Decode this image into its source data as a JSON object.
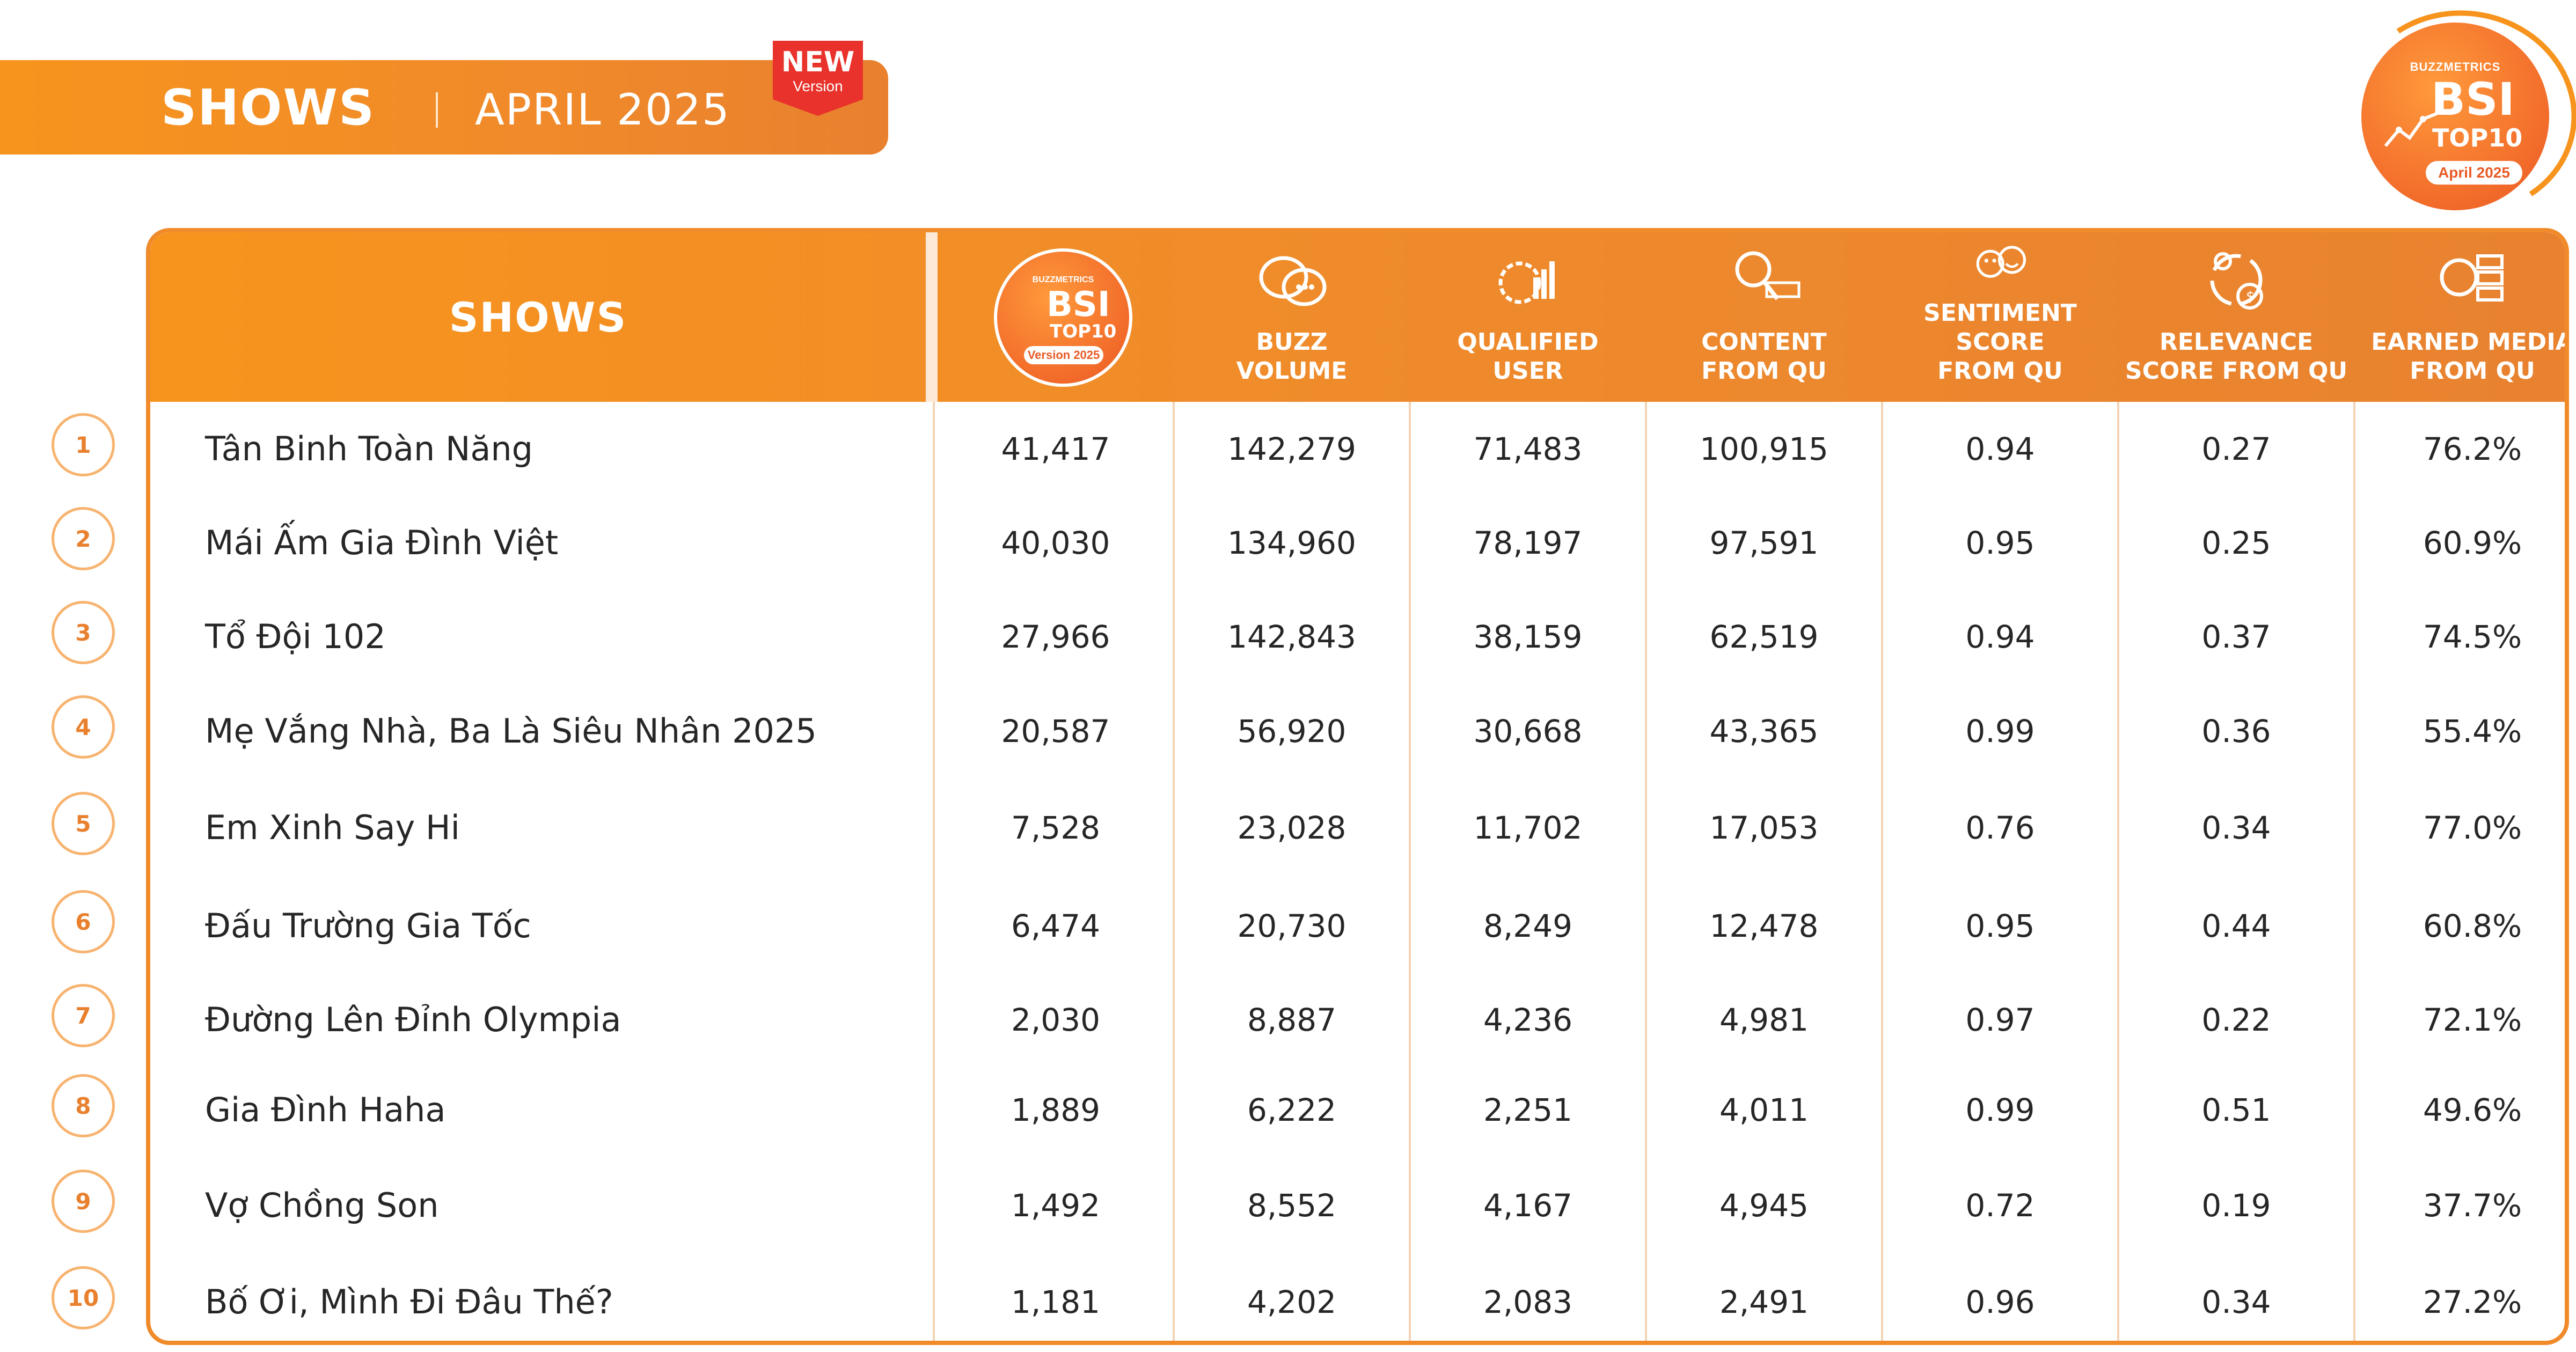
{
  "banner": {
    "title": "SHOWS",
    "period": "APRIL 2025",
    "new_badge": {
      "word": "NEW",
      "sub": "Version"
    }
  },
  "logo": {
    "brand": "BUZZMETRICS",
    "bsi": "BSI",
    "top": "TOP10",
    "date": "April 2025"
  },
  "table": {
    "name_header": "SHOWS",
    "bsi_header": {
      "brand": "BUZZMETRICS",
      "bsi": "BSI",
      "top": "TOP10",
      "version": "Version 2025"
    },
    "columns": [
      {
        "label": "BUZZ\nVOLUME",
        "icon": "chat-bubbles-icon"
      },
      {
        "label": "QUALIFIED\nUSER",
        "icon": "gear-chart-icon"
      },
      {
        "label": "CONTENT\nFROM QU",
        "icon": "search-document-icon"
      },
      {
        "label": "SENTIMENT SCORE\nFROM QU",
        "icon": "emoji-faces-icon"
      },
      {
        "label": "RELEVANCE\nSCORE FROM QU",
        "icon": "money-cycle-icon"
      },
      {
        "label": "EARNED MEDIA\nFROM QU",
        "icon": "media-server-icon"
      }
    ],
    "rows": [
      {
        "rank": "1",
        "name": "Tân Binh Toàn Năng",
        "bsi": "41,417",
        "buzz": "142,279",
        "qu": "71,483",
        "content": "100,915",
        "sentiment": "0.94",
        "relevance": "0.27",
        "earned": "76.2%"
      },
      {
        "rank": "2",
        "name": "Mái Ấm Gia Đình Việt",
        "bsi": "40,030",
        "buzz": "134,960",
        "qu": "78,197",
        "content": "97,591",
        "sentiment": "0.95",
        "relevance": "0.25",
        "earned": "60.9%"
      },
      {
        "rank": "3",
        "name": "Tổ Đội 102",
        "bsi": "27,966",
        "buzz": "142,843",
        "qu": "38,159",
        "content": "62,519",
        "sentiment": "0.94",
        "relevance": "0.37",
        "earned": "74.5%"
      },
      {
        "rank": "4",
        "name": "Mẹ Vắng Nhà, Ba Là Siêu Nhân 2025",
        "bsi": "20,587",
        "buzz": "56,920",
        "qu": "30,668",
        "content": "43,365",
        "sentiment": "0.99",
        "relevance": "0.36",
        "earned": "55.4%"
      },
      {
        "rank": "5",
        "name": "Em Xinh Say Hi",
        "bsi": "7,528",
        "buzz": "23,028",
        "qu": "11,702",
        "content": "17,053",
        "sentiment": "0.76",
        "relevance": "0.34",
        "earned": "77.0%"
      },
      {
        "rank": "6",
        "name": "Đấu Trường Gia Tốc",
        "bsi": "6,474",
        "buzz": "20,730",
        "qu": "8,249",
        "content": "12,478",
        "sentiment": "0.95",
        "relevance": "0.44",
        "earned": "60.8%"
      },
      {
        "rank": "7",
        "name": "Đường Lên Đỉnh Olympia",
        "bsi": "2,030",
        "buzz": "8,887",
        "qu": "4,236",
        "content": "4,981",
        "sentiment": "0.97",
        "relevance": "0.22",
        "earned": "72.1%"
      },
      {
        "rank": "8",
        "name": "Gia Đình Haha",
        "bsi": "1,889",
        "buzz": "6,222",
        "qu": "2,251",
        "content": "4,011",
        "sentiment": "0.99",
        "relevance": "0.51",
        "earned": "49.6%"
      },
      {
        "rank": "9",
        "name": "Vợ Chồng Son",
        "bsi": "1,492",
        "buzz": "8,552",
        "qu": "4,167",
        "content": "4,945",
        "sentiment": "0.72",
        "relevance": "0.19",
        "earned": "37.7%"
      },
      {
        "rank": "10",
        "name": "Bố Ơi, Mình Đi Đâu Thế?",
        "bsi": "1,181",
        "buzz": "4,202",
        "qu": "2,083",
        "content": "2,491",
        "sentiment": "0.96",
        "relevance": "0.34",
        "earned": "27.2%"
      }
    ]
  },
  "colors": {
    "accent": "#F7941D",
    "accent_dark": "#E8802E",
    "rank_border": "#F7B36F",
    "new_badge": "#E8322B"
  }
}
